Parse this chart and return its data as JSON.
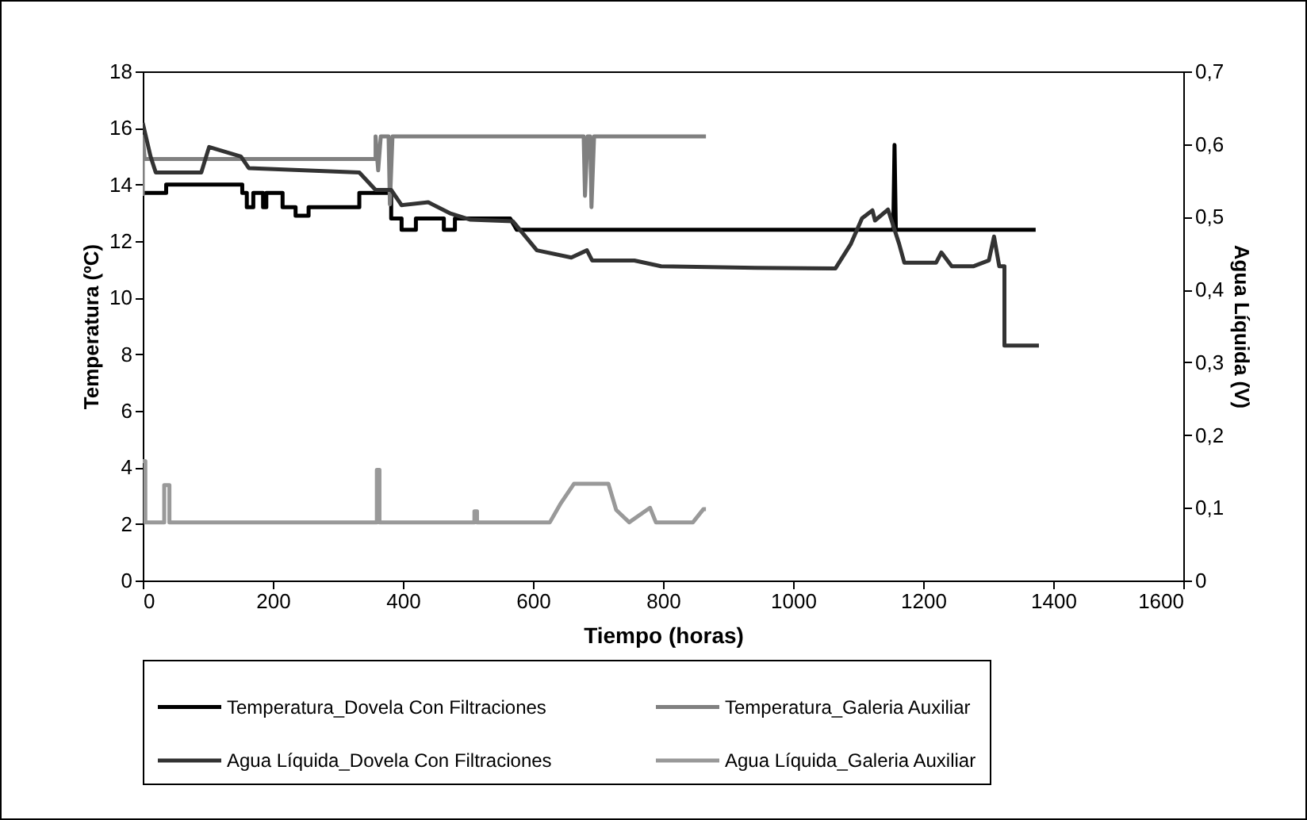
{
  "chart_data": {
    "type": "line",
    "xlabel": "Tiempo (horas)",
    "ylabel": "Temperatura (ºC)",
    "y2label": "Agua Líquida (V)",
    "xlim": [
      0,
      1600
    ],
    "xticks": [
      0,
      200,
      400,
      600,
      800,
      1000,
      1200,
      1400,
      1600
    ],
    "ylim": [
      0,
      18
    ],
    "yticks": [
      0,
      2,
      4,
      6,
      8,
      10,
      12,
      14,
      16,
      18
    ],
    "y2lim": [
      0,
      0.7
    ],
    "y2ticks": [
      {
        "value": 0,
        "label": "0"
      },
      {
        "value": 0.1,
        "label": "0,1"
      },
      {
        "value": 0.2,
        "label": "0,2"
      },
      {
        "value": 0.3,
        "label": "0,3"
      },
      {
        "value": 0.4,
        "label": "0,4"
      },
      {
        "value": 0.5,
        "label": "0,5"
      },
      {
        "value": 0.6,
        "label": "0,6"
      },
      {
        "value": 0.7,
        "label": "0,7"
      }
    ],
    "grid": false,
    "legend": "bottom",
    "marker": "none",
    "line_style": "solid",
    "series": [
      {
        "name": "Temperatura_Dovela Con Filtraciones",
        "color": "#000000",
        "x": [
          0,
          36,
          36,
          153,
          153,
          160,
          160,
          170,
          170,
          185,
          185,
          190,
          190,
          215,
          215,
          235,
          235,
          255,
          255,
          333,
          333,
          382,
          382,
          398,
          398,
          420,
          420,
          463,
          463,
          480,
          480,
          565,
          575,
          1154,
          1156,
          1158,
          1373
        ],
        "values": [
          13.7,
          13.7,
          14.0,
          14.0,
          13.7,
          13.7,
          13.2,
          13.2,
          13.7,
          13.7,
          13.2,
          13.2,
          13.7,
          13.7,
          13.2,
          13.2,
          12.9,
          12.9,
          13.2,
          13.2,
          13.7,
          13.7,
          12.8,
          12.8,
          12.4,
          12.4,
          12.8,
          12.8,
          12.4,
          12.4,
          12.8,
          12.8,
          12.4,
          12.4,
          15.4,
          12.4,
          12.4
        ]
      },
      {
        "name": "Temperatura_Galeria Auxiliar",
        "color": "#808080",
        "x": [
          0,
          0,
          3,
          358,
          358,
          362,
          366,
          378,
          380,
          384,
          678,
          680,
          684,
          688,
          690,
          694,
          866
        ],
        "values": [
          13.6,
          15.7,
          14.9,
          14.9,
          15.7,
          14.5,
          15.7,
          15.7,
          13.3,
          15.7,
          15.7,
          13.6,
          15.7,
          15.7,
          13.2,
          15.7,
          15.7
        ]
      },
      {
        "name": "Agua Líquida_Dovela Con Filtraciones",
        "color": "#333333",
        "axis": "y2",
        "x": [
          0,
          12,
          20,
          90,
          102,
          151,
          163,
          333,
          358,
          382,
          398,
          439,
          472,
          504,
          569,
          606,
          659,
          683,
          691,
          756,
          797,
          943,
          1065,
          1089,
          1106,
          1122,
          1126,
          1146,
          1163,
          1171,
          1220,
          1228,
          1244,
          1277,
          1301,
          1309,
          1317,
          1325,
          1325,
          1378
        ],
        "values": [
          0.629,
          0.583,
          0.561,
          0.561,
          0.596,
          0.583,
          0.567,
          0.561,
          0.537,
          0.537,
          0.516,
          0.52,
          0.505,
          0.496,
          0.494,
          0.454,
          0.444,
          0.454,
          0.44,
          0.44,
          0.432,
          0.43,
          0.429,
          0.463,
          0.498,
          0.509,
          0.495,
          0.51,
          0.463,
          0.437,
          0.437,
          0.451,
          0.432,
          0.432,
          0.44,
          0.473,
          0.432,
          0.432,
          0.323,
          0.323
        ]
      },
      {
        "name": "Agua Líquida_Galeria Auxiliar",
        "color": "#999999",
        "axis": "y2",
        "x": [
          0,
          4,
          4,
          33,
          33,
          41,
          41,
          360,
          360,
          364,
          364,
          510,
          510,
          514,
          514,
          626,
          642,
          663,
          716,
          728,
          748,
          780,
          789,
          846,
          862,
          866
        ],
        "values": [
          0.164,
          0.164,
          0.08,
          0.08,
          0.131,
          0.131,
          0.08,
          0.08,
          0.152,
          0.152,
          0.08,
          0.08,
          0.095,
          0.095,
          0.08,
          0.08,
          0.105,
          0.133,
          0.133,
          0.097,
          0.08,
          0.1,
          0.08,
          0.08,
          0.098,
          0.098
        ]
      }
    ]
  }
}
